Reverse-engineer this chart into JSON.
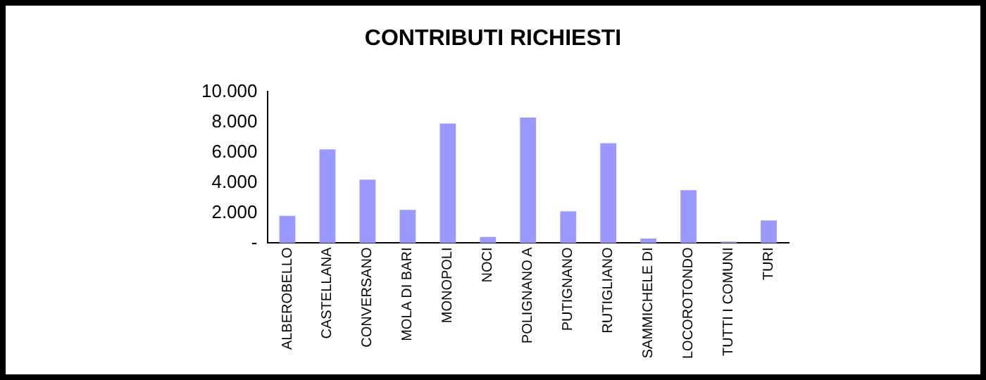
{
  "chart_data": {
    "type": "bar",
    "title": "CONTRIBUTI RICHIESTI",
    "categories": [
      "ALBEROBELLO",
      "CASTELLANA",
      "CONVERSANO",
      "MOLA DI BARI",
      "MONOPOLI",
      "NOCI",
      "POLIGNANO A",
      "PUTIGNANO",
      "RUTIGLIANO",
      "SAMMICHELE DI",
      "LOCOROTONDO",
      "TUTTI I COMUNI",
      "TURI"
    ],
    "values": [
      1800,
      6200,
      4200,
      2200,
      7900,
      400,
      8300,
      2100,
      6600,
      300,
      3500,
      100,
      1500
    ],
    "color": "#9999ff",
    "ylim": [
      0,
      10000
    ],
    "yticks": [
      {
        "value": 0,
        "label": "-"
      },
      {
        "value": 2000,
        "label": "2.000"
      },
      {
        "value": 4000,
        "label": "4.000"
      },
      {
        "value": 6000,
        "label": "6.000"
      },
      {
        "value": 8000,
        "label": "8.000"
      },
      {
        "value": 10000,
        "label": "10.000"
      }
    ],
    "grid": false,
    "legend": false
  }
}
